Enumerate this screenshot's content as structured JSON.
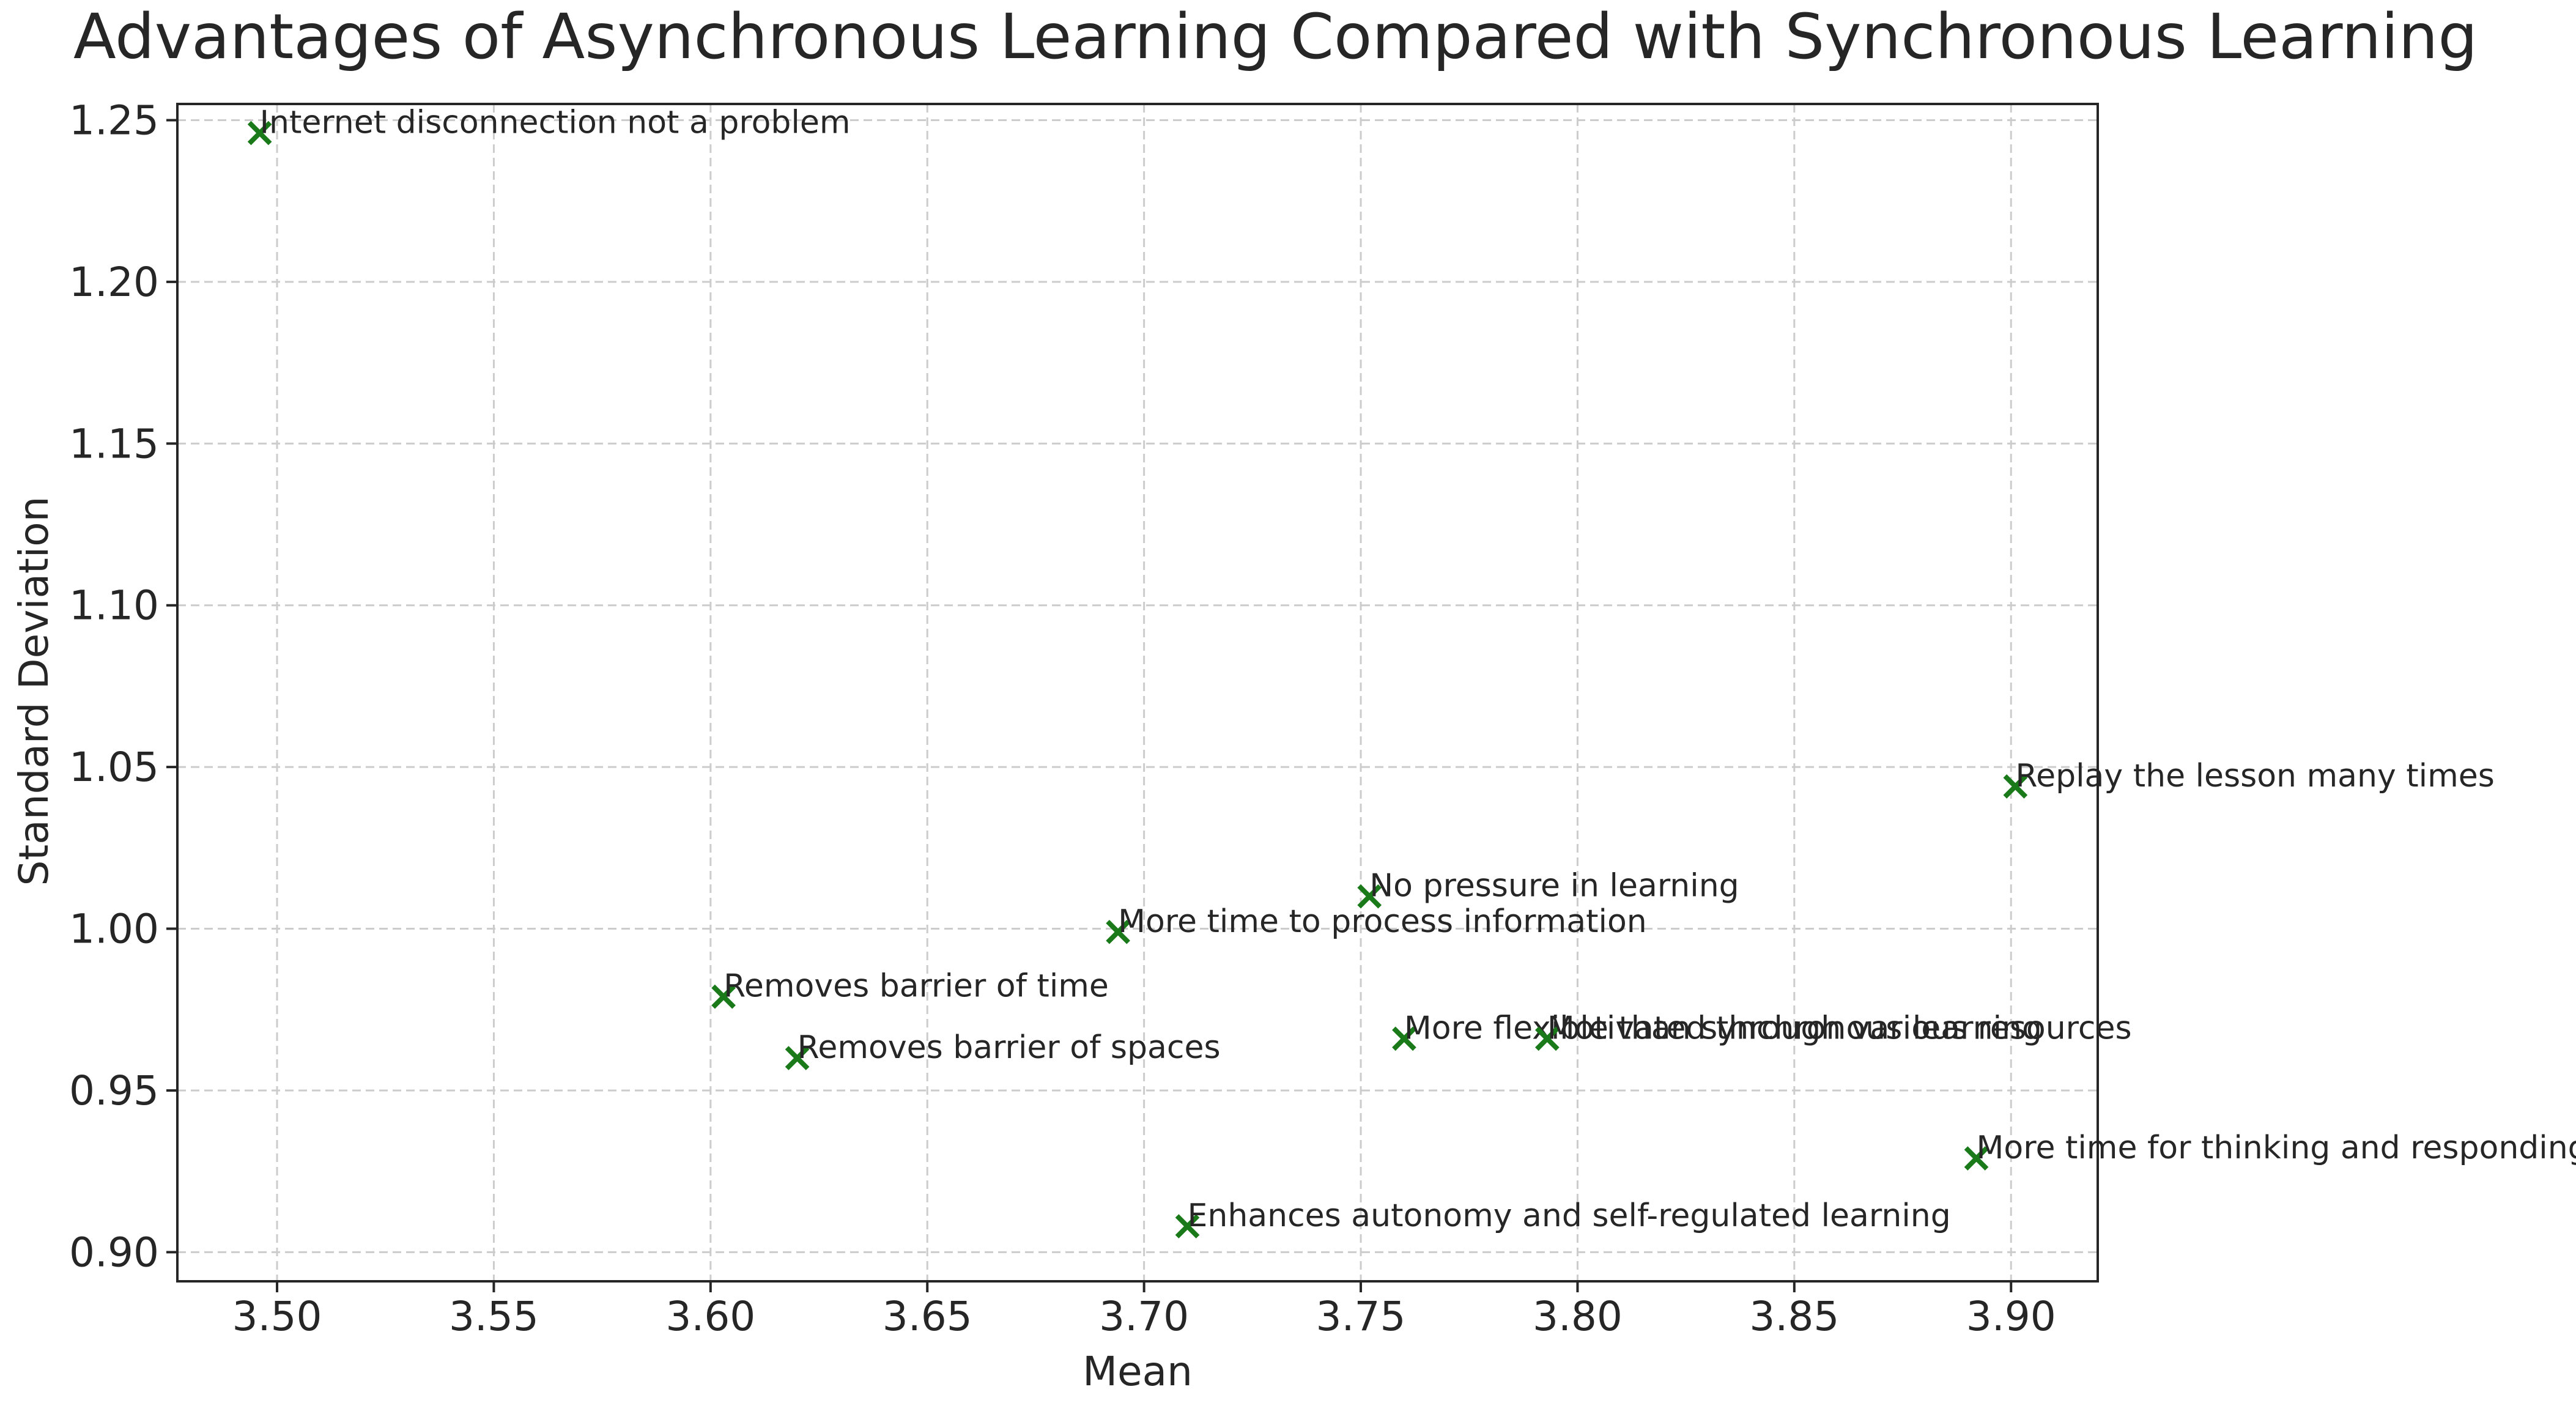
{
  "chart_data": {
    "type": "scatter",
    "title": "Advantages of Asynchronous Learning Compared with Synchronous Learning",
    "xlabel": "Mean",
    "ylabel": "Standard Deviation",
    "xlim": [
      3.477,
      3.92
    ],
    "ylim": [
      0.891,
      1.255
    ],
    "xticks": [
      "3.50",
      "3.55",
      "3.60",
      "3.65",
      "3.70",
      "3.75",
      "3.80",
      "3.85",
      "3.90"
    ],
    "yticks": [
      "0.90",
      "0.95",
      "1.00",
      "1.05",
      "1.10",
      "1.15",
      "1.20",
      "1.25"
    ],
    "grid": true,
    "marker": "x",
    "marker_color": "#1a7a1a",
    "points": [
      {
        "label": "Internet disconnection not a problem",
        "x": 3.496,
        "y": 1.246
      },
      {
        "label": "Replay the lesson many times",
        "x": 3.901,
        "y": 1.044
      },
      {
        "label": "No pressure in learning",
        "x": 3.752,
        "y": 1.01
      },
      {
        "label": "More time to process information",
        "x": 3.694,
        "y": 0.999
      },
      {
        "label": "Removes barrier of time",
        "x": 3.603,
        "y": 0.979
      },
      {
        "label": "Removes barrier of spaces",
        "x": 3.62,
        "y": 0.96
      },
      {
        "label": "More flexible than synchronous learning",
        "x": 3.76,
        "y": 0.966
      },
      {
        "label": "Motivated through various resources",
        "x": 3.793,
        "y": 0.966
      },
      {
        "label": "More time for thinking and responding",
        "x": 3.892,
        "y": 0.929
      },
      {
        "label": "Enhances autonomy and self-regulated learning",
        "x": 3.71,
        "y": 0.908
      }
    ]
  }
}
